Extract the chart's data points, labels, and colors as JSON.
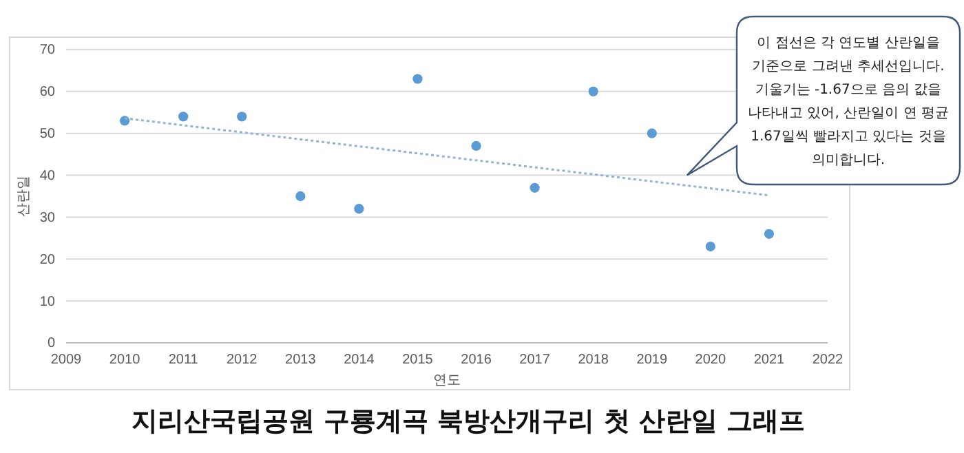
{
  "chart_data": {
    "type": "scatter",
    "title": "지리산국립공원 구룡계곡 북방산개구리 첫 산란일 그래프",
    "xlabel": "연도",
    "ylabel": "산란일",
    "x": [
      2010,
      2011,
      2012,
      2013,
      2014,
      2015,
      2016,
      2017,
      2018,
      2019,
      2020,
      2021
    ],
    "series": [
      {
        "color": "#5b9bd5",
        "values": [
          53,
          54,
          54,
          35,
          32,
          63,
          47,
          37,
          60,
          50,
          23,
          26
        ],
        "marker": "circle"
      },
      {
        "type": "line",
        "color": "#8fb4dc",
        "x": [
          2010,
          2021
        ],
        "values": [
          53.6,
          35.2
        ],
        "line_style": "dotted",
        "marker": "none"
      }
    ],
    "xlim": [
      2009,
      2022
    ],
    "xticks": [
      2009,
      2010,
      2011,
      2012,
      2013,
      2014,
      2015,
      2016,
      2017,
      2018,
      2019,
      2020,
      2021,
      2022
    ],
    "ylim": [
      0,
      70
    ],
    "yticks": [
      0,
      10,
      20,
      30,
      40,
      50,
      60,
      70
    ],
    "grid": "y",
    "annotations": [
      "이 점선은 각 연도별 산란일을\n기준으로 그려낸 추세선입니다.\n기울기는 -1.67으로 음의 값을\n나타내고 있어, 산란일이 연 평균\n1.67일씩 빨라지고 있다는 것을\n의미합니다."
    ]
  }
}
